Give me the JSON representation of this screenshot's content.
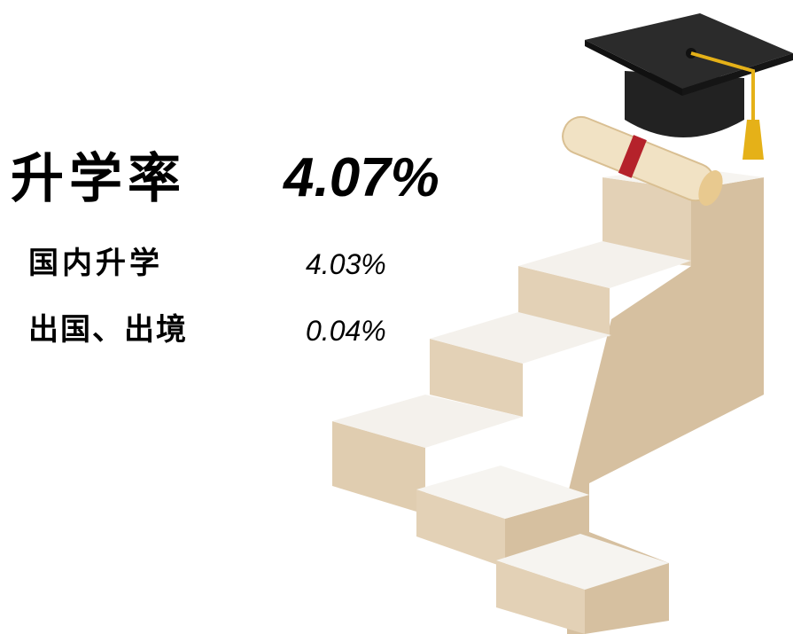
{
  "headline": {
    "label": "升学率",
    "value": "4.07%"
  },
  "items": [
    {
      "label": "国内升学",
      "value": "4.03%"
    },
    {
      "label": "出国、出境",
      "value": "0.04%"
    }
  ]
}
